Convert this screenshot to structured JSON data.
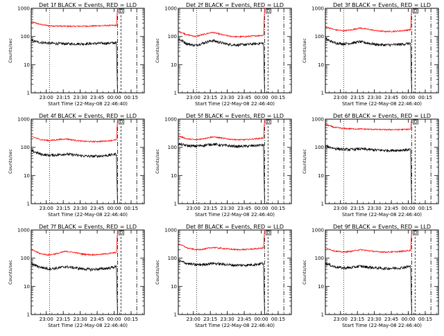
{
  "chart_data": [
    {
      "type": "line",
      "title": "Det 1f BLACK = Events, RED = LLD",
      "xlabel": "Start Time (22-May-08 22:46:40)",
      "ylabel": "Counts/sec",
      "x_ticks": [
        "23:00",
        "23:15",
        "23:30",
        "23:45",
        "00:00",
        "00:15"
      ],
      "y_ticks": [
        "1",
        "10",
        "100",
        "1000"
      ],
      "y_scale": "log",
      "ylim": [
        1,
        1000
      ],
      "xlim": [
        "22:46:40",
        "00:26:40"
      ],
      "marker_label": "D",
      "series": [
        {
          "color": "#ff0000",
          "values": [
            330,
            270,
            240,
            235,
            232,
            230,
            232,
            235,
            240,
            245,
            250,
            1000
          ]
        },
        {
          "color": "#000000",
          "values": [
            70,
            62,
            58,
            56,
            55,
            55,
            55,
            56,
            57,
            58,
            60,
            1
          ]
        }
      ]
    },
    {
      "type": "line",
      "title": "Det 2f BLACK = Events, RED = LLD",
      "xlabel": "Start Time (22-May-08 22:46:40)",
      "ylabel": "Counts/sec",
      "x_ticks": [
        "23:00",
        "23:15",
        "23:30",
        "23:45",
        "00:00",
        "00:15"
      ],
      "y_ticks": [
        "1",
        "10",
        "100",
        "1000"
      ],
      "y_scale": "log",
      "ylim": [
        1,
        1000
      ],
      "xlim": [
        "22:46:40",
        "00:26:40"
      ],
      "marker_label": "D",
      "series": [
        {
          "color": "#ff0000",
          "values": [
            150,
            115,
            100,
            120,
            140,
            118,
            102,
            98,
            100,
            105,
            110,
            1000
          ]
        },
        {
          "color": "#000000",
          "values": [
            80,
            55,
            48,
            60,
            72,
            60,
            52,
            50,
            52,
            55,
            58,
            1
          ]
        }
      ]
    },
    {
      "type": "line",
      "title": "Det 3f BLACK = Events, RED = LLD",
      "xlabel": "Start Time (22-May-08 22:46:40)",
      "ylabel": "Counts/sec",
      "x_ticks": [
        "23:00",
        "23:15",
        "23:30",
        "23:45",
        "00:00",
        "00:15"
      ],
      "y_ticks": [
        "1",
        "10",
        "100",
        "1000"
      ],
      "y_scale": "log",
      "ylim": [
        1,
        1000
      ],
      "xlim": [
        "22:46:40",
        "00:26:40"
      ],
      "marker_label": "D",
      "series": [
        {
          "color": "#ff0000",
          "values": [
            220,
            175,
            160,
            170,
            200,
            180,
            160,
            150,
            152,
            160,
            175,
            1000
          ]
        },
        {
          "color": "#000000",
          "values": [
            80,
            60,
            55,
            58,
            65,
            58,
            52,
            50,
            51,
            53,
            58,
            1
          ]
        }
      ]
    },
    {
      "type": "line",
      "title": "Det 4f BLACK = Events, RED = LLD",
      "xlabel": "Start Time (22-May-08 22:46:40)",
      "ylabel": "Counts/sec",
      "x_ticks": [
        "23:00",
        "23:15",
        "23:30",
        "23:45",
        "00:00",
        "00:15"
      ],
      "y_ticks": [
        "1",
        "10",
        "100",
        "1000"
      ],
      "y_scale": "log",
      "ylim": [
        1,
        1000
      ],
      "xlim": [
        "22:46:40",
        "00:26:40"
      ],
      "marker_label": "D",
      "series": [
        {
          "color": "#ff0000",
          "values": [
            240,
            190,
            175,
            185,
            200,
            180,
            165,
            160,
            162,
            170,
            185,
            1000
          ]
        },
        {
          "color": "#000000",
          "values": [
            75,
            58,
            52,
            54,
            58,
            54,
            50,
            48,
            49,
            52,
            58,
            1
          ]
        }
      ]
    },
    {
      "type": "line",
      "title": "Det 5f BLACK = Events, RED = LLD",
      "xlabel": "Start Time (22-May-08 22:46:40)",
      "ylabel": "Counts/sec",
      "x_ticks": [
        "23:00",
        "23:15",
        "23:30",
        "23:45",
        "00:00",
        "00:15"
      ],
      "y_ticks": [
        "1",
        "10",
        "100",
        "1000"
      ],
      "y_scale": "log",
      "ylim": [
        1,
        1000
      ],
      "xlim": [
        "22:46:40",
        "00:26:40"
      ],
      "marker_label": "D",
      "series": [
        {
          "color": "#ff0000",
          "values": [
            250,
            200,
            185,
            205,
            235,
            215,
            195,
            185,
            188,
            200,
            215,
            1000
          ]
        },
        {
          "color": "#000000",
          "values": [
            130,
            115,
            110,
            118,
            130,
            120,
            112,
            108,
            110,
            115,
            122,
            1
          ]
        }
      ]
    },
    {
      "type": "line",
      "title": "Det 6f BLACK = Events, RED = LLD",
      "xlabel": "Start Time (22-May-08 22:46:40)",
      "ylabel": "Counts/sec",
      "x_ticks": [
        "23:00",
        "23:15",
        "23:30",
        "23:45",
        "00:00",
        "00:15"
      ],
      "y_ticks": [
        "1",
        "10",
        "100",
        "1000"
      ],
      "y_scale": "log",
      "ylim": [
        1,
        1000
      ],
      "xlim": [
        "22:46:40",
        "00:26:40"
      ],
      "marker_label": "D",
      "series": [
        {
          "color": "#ff0000",
          "values": [
            640,
            510,
            470,
            455,
            450,
            440,
            430,
            425,
            425,
            430,
            440,
            1000
          ]
        },
        {
          "color": "#000000",
          "values": [
            110,
            92,
            85,
            84,
            88,
            84,
            80,
            78,
            78,
            80,
            84,
            1
          ]
        }
      ]
    },
    {
      "type": "line",
      "title": "Det 7f BLACK = Events, RED = LLD",
      "xlabel": "Start Time (22-May-08 22:46:40)",
      "ylabel": "Counts/sec",
      "x_ticks": [
        "23:00",
        "23:15",
        "23:30",
        "23:45",
        "00:00",
        "00:15"
      ],
      "y_ticks": [
        "1",
        "10",
        "100",
        "1000"
      ],
      "y_scale": "log",
      "ylim": [
        1,
        1000
      ],
      "xlim": [
        "22:46:40",
        "00:26:40"
      ],
      "marker_label": "D",
      "series": [
        {
          "color": "#ff0000",
          "values": [
            200,
            145,
            130,
            145,
            175,
            160,
            140,
            132,
            135,
            145,
            160,
            1000
          ]
        },
        {
          "color": "#000000",
          "values": [
            62,
            48,
            42,
            44,
            50,
            46,
            42,
            40,
            41,
            44,
            50,
            1
          ]
        }
      ]
    },
    {
      "type": "line",
      "title": "Det 8f BLACK = Events, RED = LLD",
      "xlabel": "Start Time (22-May-08 22:46:40)",
      "ylabel": "Counts/sec",
      "x_ticks": [
        "23:00",
        "23:15",
        "23:30",
        "23:45",
        "00:00",
        "00:15"
      ],
      "y_ticks": [
        "1",
        "10",
        "100",
        "1000"
      ],
      "y_scale": "log",
      "ylim": [
        1,
        1000
      ],
      "xlim": [
        "22:46:40",
        "00:26:40"
      ],
      "marker_label": "D",
      "series": [
        {
          "color": "#ff0000",
          "values": [
            320,
            230,
            200,
            210,
            240,
            225,
            210,
            200,
            205,
            215,
            230,
            1000
          ]
        },
        {
          "color": "#000000",
          "values": [
            80,
            65,
            58,
            60,
            66,
            62,
            58,
            56,
            57,
            60,
            66,
            1
          ]
        }
      ]
    },
    {
      "type": "line",
      "title": "Det 9f BLACK = Events, RED = LLD",
      "xlabel": "Start Time (22-May-08 22:46:40)",
      "ylabel": "Counts/sec",
      "x_ticks": [
        "23:00",
        "23:15",
        "23:30",
        "23:45",
        "00:00",
        "00:15"
      ],
      "y_ticks": [
        "1",
        "10",
        "100",
        "1000"
      ],
      "y_scale": "log",
      "ylim": [
        1,
        1000
      ],
      "xlim": [
        "22:46:40",
        "00:26:40"
      ],
      "marker_label": "D",
      "series": [
        {
          "color": "#ff0000",
          "values": [
            230,
            180,
            165,
            175,
            200,
            185,
            170,
            165,
            168,
            175,
            190,
            1000
          ]
        },
        {
          "color": "#000000",
          "values": [
            65,
            50,
            45,
            46,
            52,
            48,
            45,
            43,
            44,
            46,
            52,
            1
          ]
        }
      ]
    }
  ]
}
